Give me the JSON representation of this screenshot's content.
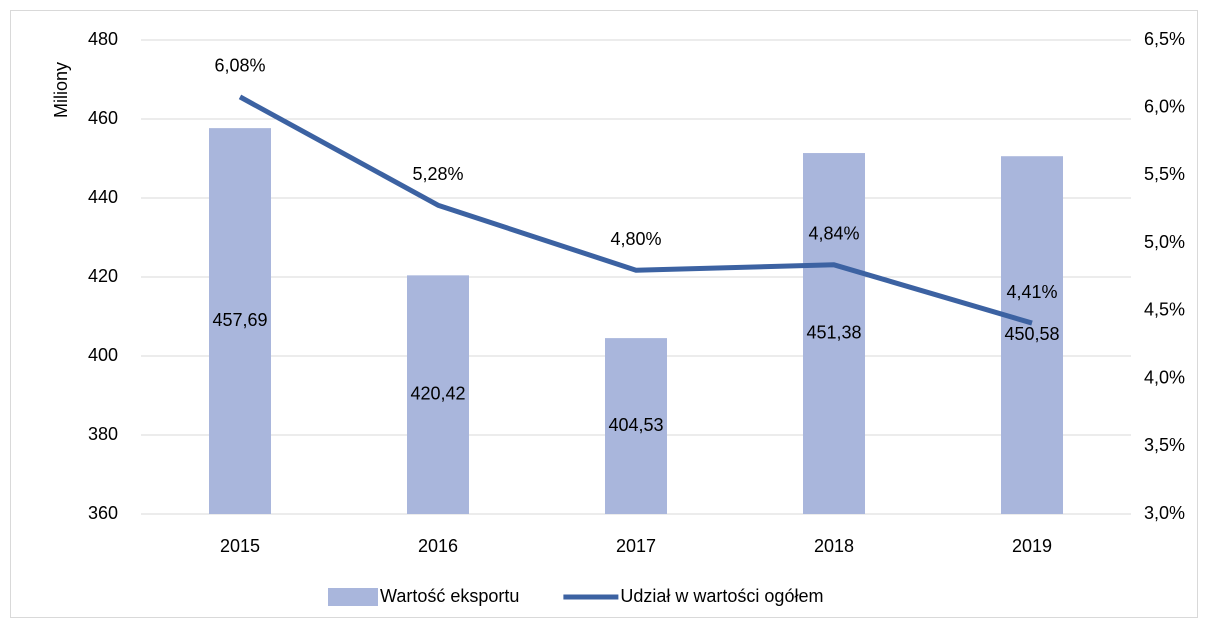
{
  "chart_data": {
    "type": "bar",
    "categories": [
      "2015",
      "2016",
      "2017",
      "2018",
      "2019"
    ],
    "series": [
      {
        "name": "Wartość eksportu",
        "type": "bar",
        "color": "#a9b6dc",
        "values": [
          457.69,
          420.42,
          404.53,
          451.38,
          450.58
        ],
        "value_labels": [
          "457,69",
          "420,42",
          "404,53",
          "451,38",
          "450,58"
        ]
      },
      {
        "name": "Udział w wartości ogółem",
        "type": "line",
        "axis": "y2",
        "color": "#3c62a2",
        "values": [
          6.08,
          5.28,
          4.8,
          4.84,
          4.41
        ],
        "value_labels": [
          "6,08%",
          "5,28%",
          "4,80%",
          "4,84%",
          "4,41%"
        ]
      }
    ],
    "ylabel": "Miliony",
    "ylim": [
      360,
      480
    ],
    "yticks": [
      360,
      380,
      400,
      420,
      440,
      460,
      480
    ],
    "y2lim": [
      3.0,
      6.5
    ],
    "y2ticks": [
      {
        "value": 3.0,
        "label": "3,0%"
      },
      {
        "value": 3.5,
        "label": "3,5%"
      },
      {
        "value": 4.0,
        "label": "4,0%"
      },
      {
        "value": 4.5,
        "label": "4,5%"
      },
      {
        "value": 5.0,
        "label": "5,0%"
      },
      {
        "value": 5.5,
        "label": "5,5%"
      },
      {
        "value": 6.0,
        "label": "6,0%"
      },
      {
        "value": 6.5,
        "label": "6,5%"
      }
    ],
    "grid": true,
    "legend": "bottom"
  }
}
